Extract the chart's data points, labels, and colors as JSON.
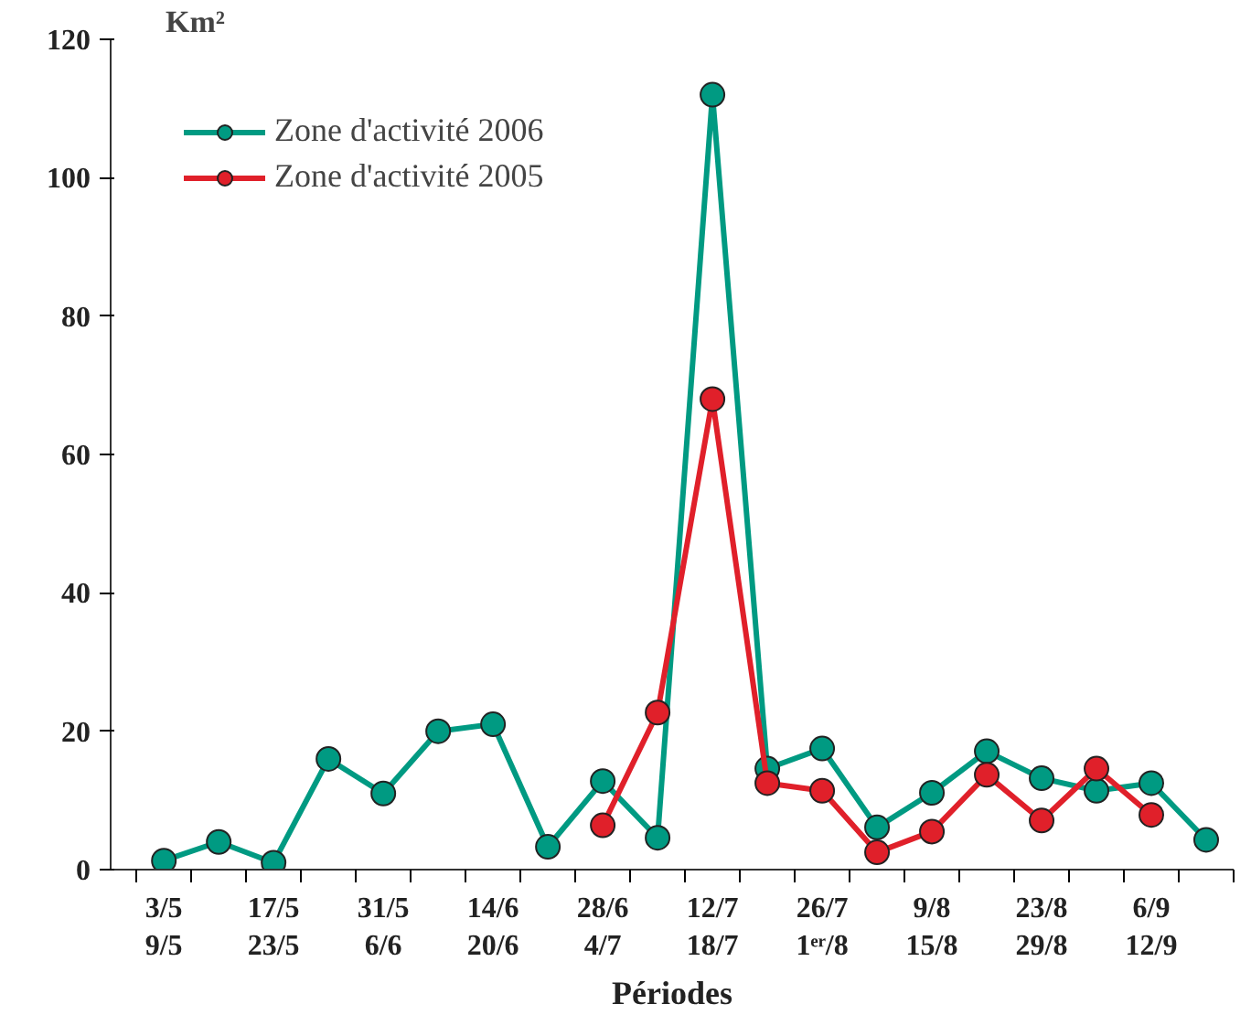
{
  "chart_data": {
    "type": "line",
    "xlabel": "Périodes",
    "ylabel": "Km²",
    "categories": [
      "3/5\n9/5",
      null,
      "17/5\n23/5",
      null,
      "31/5\n6/6",
      null,
      "14/6\n20/6",
      null,
      "28/6\n4/7",
      null,
      "12/7\n18/7",
      null,
      "26/7\n1ᵉʳ/8",
      null,
      "9/8\n15/8",
      null,
      "23/8\n29/8",
      null,
      "6/9\n12/9",
      null
    ],
    "series": [
      {
        "name": "Zone d'activité 2006",
        "color": "#009a82",
        "values": [
          1.3,
          4,
          1,
          16,
          11,
          20,
          21,
          3.3,
          12.8,
          4.6,
          112,
          14.6,
          17.5,
          6.1,
          11.1,
          17.1,
          13.2,
          11.4,
          12.5,
          4.3
        ]
      },
      {
        "name": "Zone d'activité 2005",
        "color": "#e0202a",
        "values": [
          null,
          null,
          null,
          null,
          null,
          null,
          null,
          null,
          6.4,
          22.7,
          68,
          12.5,
          11.4,
          2.5,
          5.5,
          13.7,
          7.1,
          14.6,
          7.9,
          null
        ]
      }
    ],
    "ylim": [
      0,
      120
    ],
    "yticks": [
      0,
      20,
      40,
      60,
      80,
      100,
      120
    ],
    "grid": false,
    "legend": "top left",
    "marker": "circle",
    "line_style": "solid"
  }
}
